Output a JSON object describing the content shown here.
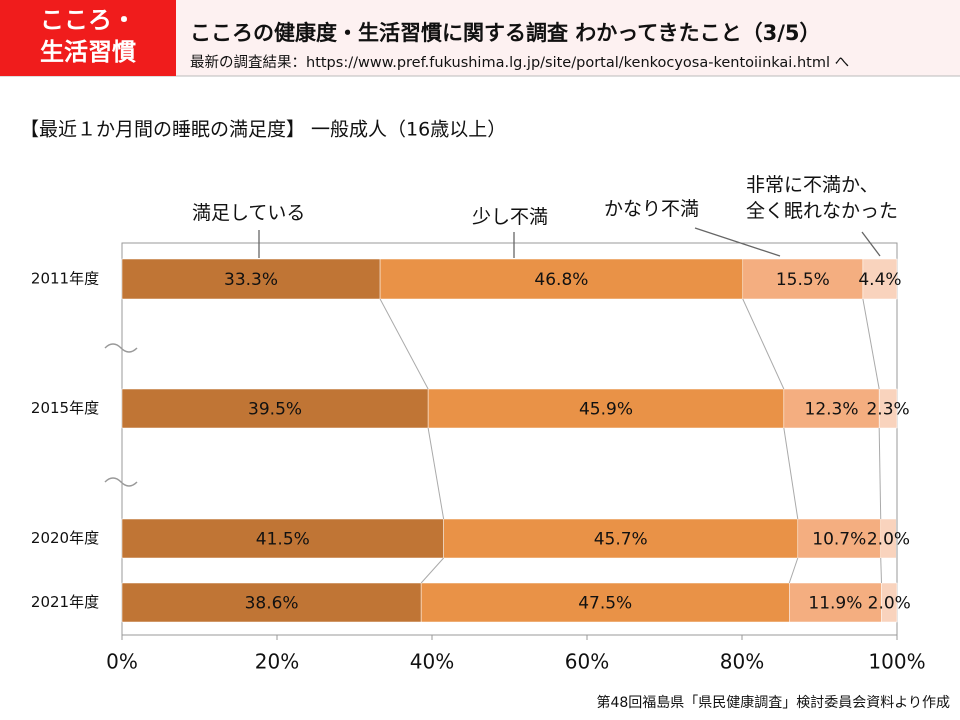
{
  "header": {
    "badge": [
      "こころ・",
      "生活習慣"
    ],
    "title": "こころの健康度・生活習慣に関する調査 わかってきたこと（3/5）",
    "url": "最新の調査結果：https://www.pref.fukushima.lg.jp/site/portal/kenkocyosa-kentoiinkai.html へ"
  },
  "chart_data": {
    "type": "stacked_bar_horizontal",
    "title": "【最近１か月間の睡眠の満足度】 一般成人（16歳以上）",
    "categories": [
      "2011年度",
      "2015年度",
      "2020年度",
      "2021年度"
    ],
    "series": [
      {
        "name": "満足している",
        "color": "#c07535",
        "values": [
          33.3,
          39.5,
          41.5,
          38.6
        ],
        "value_labels": [
          "33.3%",
          "39.5%",
          "41.5%",
          "38.6%"
        ]
      },
      {
        "name": "少し不満",
        "color": "#e99247",
        "values": [
          46.8,
          45.9,
          45.7,
          47.5
        ],
        "value_labels": [
          "46.8%",
          "45.9%",
          "45.7%",
          "47.5%"
        ]
      },
      {
        "name": "かなり不満",
        "color": "#f4ae80",
        "values": [
          15.5,
          12.3,
          10.7,
          11.9
        ],
        "value_labels": [
          "15.5%",
          "12.3%",
          "10.7%",
          "11.9%"
        ]
      },
      {
        "name": "非常に不満か、\n全く眠れなかった",
        "color": "#f9d3bd",
        "values": [
          4.4,
          2.3,
          2.0,
          2.0
        ],
        "value_labels": [
          "4.4%",
          "2.3%",
          "2.0%",
          "2.0%"
        ]
      }
    ],
    "xlim": [
      0,
      100
    ],
    "xticks": [
      {
        "value": 0,
        "label": "0%"
      },
      {
        "value": 20,
        "label": "20%"
      },
      {
        "value": 40,
        "label": "40%"
      },
      {
        "value": 60,
        "label": "60%"
      },
      {
        "value": 80,
        "label": "80%"
      },
      {
        "value": 100,
        "label": "100%"
      }
    ]
  },
  "footer": "第48回福島県「県民健康調査」検討委員会資料より作成"
}
